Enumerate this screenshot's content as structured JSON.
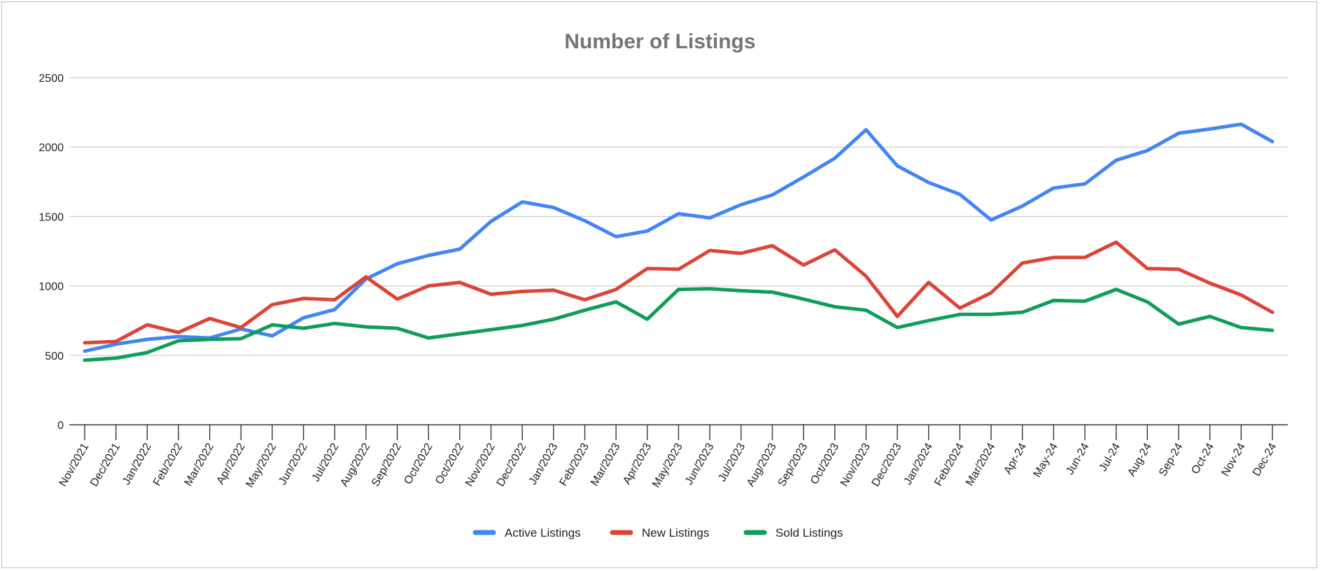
{
  "chart_data": {
    "type": "line",
    "title": "Number of Listings",
    "xlabel": "",
    "ylabel": "",
    "ylim": [
      0,
      2500
    ],
    "yticks": [
      "0",
      "500",
      "1000",
      "1500",
      "2000",
      "2500"
    ],
    "grid": true,
    "legend_position": "bottom",
    "categories": [
      "Nov/2021",
      "Dec/2021",
      "Jan/2022",
      "Feb/2022",
      "Mar/2022",
      "Apr/2022",
      "May/2022",
      "Jun/2022",
      "Jul/2022",
      "Aug/2022",
      "Sep/2022",
      "Oct/2022",
      "Oct/2022",
      "Nov/2022",
      "Dec/2022",
      "Jan/2023",
      "Feb/2023",
      "Mar/2023",
      "Apr/2023",
      "May/2023",
      "Jun/2023",
      "Jul/2023",
      "Aug/2023",
      "Sep/2023",
      "Oct/2023",
      "Nov/2023",
      "Dec/2023",
      "Jan/2024",
      "Feb/2024",
      "Mar/2024",
      "Apr-24",
      "May-24",
      "Jun-24",
      "Jul-24",
      "Aug-24",
      "Sep-24",
      "Oct-24",
      "Nov-24",
      "Dec-24"
    ],
    "series": [
      {
        "name": "Active Listings",
        "color": "#4285F4",
        "values": [
          530,
          580,
          615,
          635,
          625,
          690,
          640,
          770,
          830,
          1050,
          1160,
          1220,
          1265,
          1465,
          1605,
          1565,
          1470,
          1355,
          1395,
          1520,
          1490,
          1585,
          1655,
          1785,
          1920,
          2125,
          1865,
          1745,
          1660,
          1475,
          1575,
          1705,
          1735,
          1905,
          1975,
          2100,
          2130,
          2165,
          2040
        ]
      },
      {
        "name": "New Listings",
        "color": "#DB4437",
        "values": [
          590,
          600,
          720,
          665,
          765,
          700,
          865,
          910,
          900,
          1065,
          905,
          1000,
          1025,
          940,
          960,
          970,
          900,
          975,
          1125,
          1120,
          1255,
          1235,
          1290,
          1150,
          1260,
          1070,
          780,
          1025,
          840,
          950,
          1165,
          1205,
          1205,
          1315,
          1125,
          1120,
          1020,
          935,
          810
        ]
      },
      {
        "name": "Sold Listings",
        "color": "#0F9D58",
        "values": [
          465,
          480,
          520,
          605,
          615,
          620,
          720,
          695,
          730,
          705,
          695,
          625,
          655,
          685,
          715,
          760,
          825,
          885,
          760,
          975,
          980,
          965,
          955,
          905,
          850,
          825,
          700,
          750,
          795,
          795,
          810,
          895,
          890,
          975,
          885,
          725,
          780,
          700,
          680
        ]
      }
    ]
  }
}
